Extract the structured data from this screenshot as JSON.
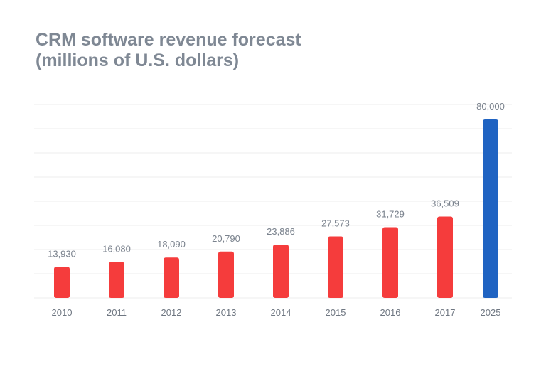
{
  "chart_data": {
    "type": "bar",
    "title_line1": "CRM software revenue forecast",
    "title_line2": "(millions of U.S. dollars)",
    "categories": [
      "2010",
      "2011",
      "2012",
      "2013",
      "2014",
      "2015",
      "2016",
      "2017",
      "2025"
    ],
    "values": [
      13930,
      16080,
      18090,
      20790,
      23886,
      27573,
      31729,
      36509,
      80000
    ],
    "value_labels": [
      "13,930",
      "16,080",
      "18,090",
      "20,790",
      "23,886",
      "27,573",
      "31,729",
      "36,509",
      "80,000"
    ],
    "bar_colors": [
      "#f53c3c",
      "#f53c3c",
      "#f53c3c",
      "#f53c3c",
      "#f53c3c",
      "#f53c3c",
      "#f53c3c",
      "#f53c3c",
      "#1f63c2"
    ],
    "ylim": [
      0,
      80000
    ],
    "grid": true,
    "xlabel": "",
    "ylabel": ""
  }
}
